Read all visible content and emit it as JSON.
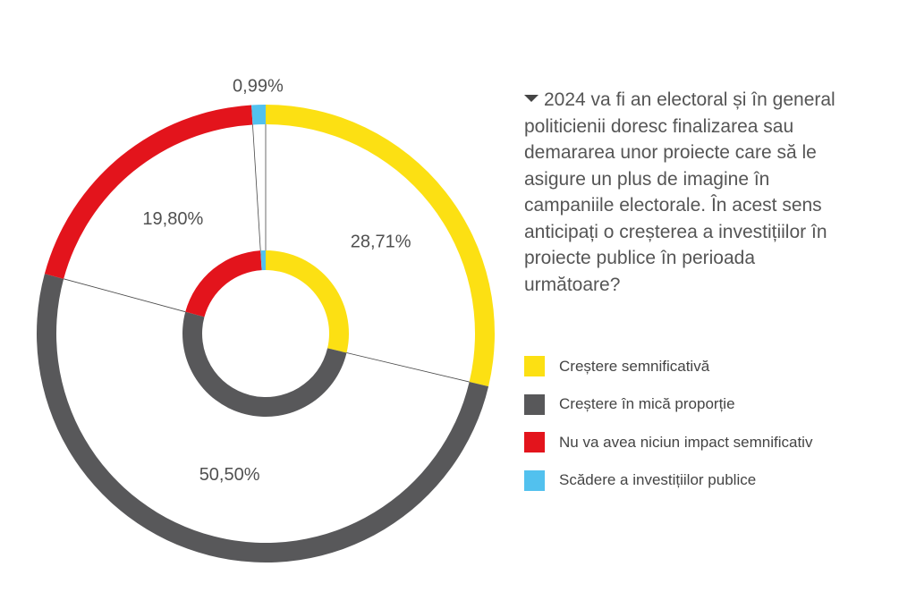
{
  "question": {
    "text": "2024 va fi an electoral și în general politicienii doresc finalizarea sau demararea unor proiecte care să le asigure un plus de imagine în campaniile electorale. În acest sens anticipați o creșterea a investițiilor în proiecte publice în perioada următoare?"
  },
  "chart_data": {
    "type": "pie",
    "variant": "double donut",
    "categories": [
      "Creștere semnificativă",
      "Creștere în mică proporție",
      "Nu va avea niciun impact semnificativ",
      "Scădere a investițiilor publice"
    ],
    "values": [
      28.71,
      50.5,
      19.8,
      0.99
    ],
    "value_labels": [
      "28,71%",
      "50,50%",
      "19,80%",
      "0,99%"
    ],
    "colors": [
      "#fce013",
      "#58585a",
      "#e3141c",
      "#52c1ee"
    ],
    "legend_position": "right"
  },
  "legend": {
    "items": [
      {
        "label": "Creștere semnificativă",
        "color": "#fce013"
      },
      {
        "label": "Creștere în mică proporție",
        "color": "#58585a"
      },
      {
        "label": "Nu va avea niciun impact semnificativ",
        "color": "#e3141c"
      },
      {
        "label": "Scădere a investițiilor publice",
        "color": "#52c1ee"
      }
    ]
  }
}
